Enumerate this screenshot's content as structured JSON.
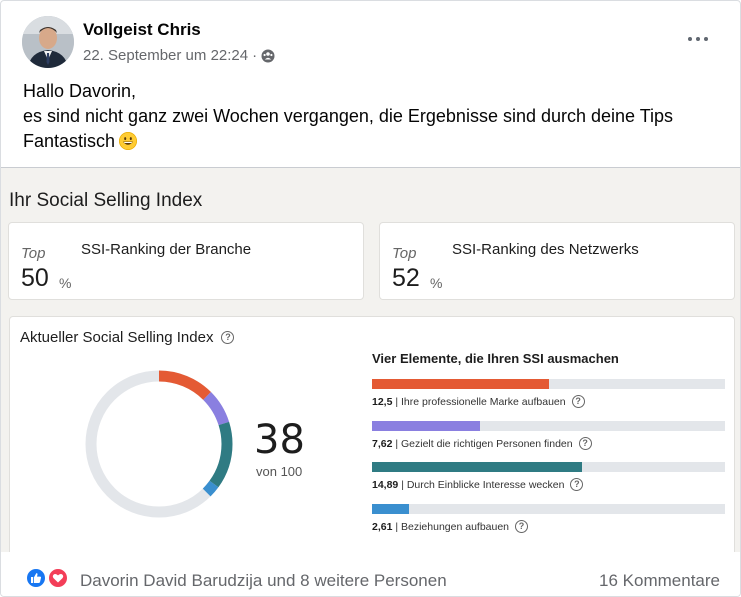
{
  "post": {
    "author": "Vollgeist Chris",
    "timestamp": "22. September um 22:24",
    "separator": "·",
    "privacy_icon": "friends-icon",
    "text_line1": "Hallo Davorin,",
    "text_line2": "es sind nicht ganz zwei Wochen vergangen, die Ergebnisse sind durch deine Tips",
    "text_line3": "Fantastisch",
    "emoji": "grinning-face-emoji"
  },
  "ssi": {
    "title": "Ihr Social Selling Index",
    "branch": {
      "top_label": "Top",
      "title": "SSI-Ranking der Branche",
      "value": "50",
      "unit": "%"
    },
    "network": {
      "top_label": "Top",
      "title": "SSI-Ranking des Netzwerks",
      "value": "52",
      "unit": "%"
    },
    "current_title": "Aktueller Social Selling Index",
    "score": "38",
    "score_sub": "von 100",
    "score_value": 38,
    "max": 100,
    "elements_title": "Vier Elemente, die Ihren SSI ausmachen",
    "elements": [
      {
        "value_label": "12,5",
        "label": "| Ihre professionelle Marke aufbauen",
        "value": 12.5,
        "max": 25,
        "color": "#e45a34"
      },
      {
        "value_label": "7,62",
        "label": "| Gezielt die richtigen Personen finden",
        "value": 7.62,
        "max": 25,
        "color": "#8a7fe0"
      },
      {
        "value_label": "14,89",
        "label": "| Durch Einblicke Interesse wecken",
        "value": 14.89,
        "max": 25,
        "color": "#2f7b83"
      },
      {
        "value_label": "2,61",
        "label": "| Beziehungen aufbauen",
        "value": 2.61,
        "max": 25,
        "color": "#3a8fcf"
      }
    ]
  },
  "footer": {
    "reactors": "Davorin David Barudzija und 8 weitere Personen",
    "comments": "16 Kommentare"
  },
  "colors": {
    "track": "#e3e6ea",
    "meta_text": "#65676b",
    "like_blue": "#1877f2",
    "love_red": "#f33e58"
  }
}
